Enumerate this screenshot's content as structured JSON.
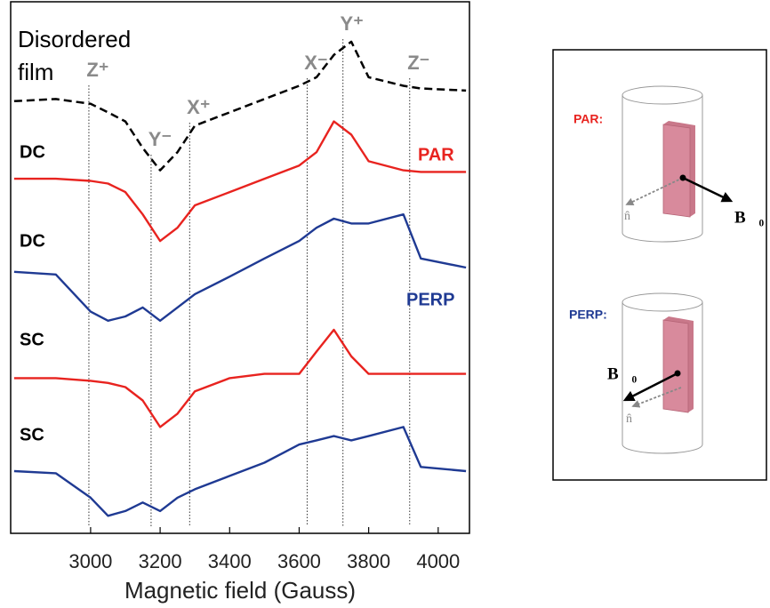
{
  "chart_data": {
    "type": "line",
    "xlabel": "Magnetic field (Gauss)",
    "xlim": [
      2770,
      4090
    ],
    "xticks": [
      3000,
      3200,
      3400,
      3600,
      3800,
      4000
    ],
    "ylim": [
      0,
      100
    ],
    "x": [
      2780,
      2900,
      3000,
      3050,
      3100,
      3150,
      3200,
      3250,
      3300,
      3400,
      3500,
      3600,
      3650,
      3700,
      3750,
      3800,
      3900,
      3950,
      4080
    ],
    "series": [
      {
        "color": "#000000",
        "dashed": true,
        "values": [
          81.3,
          81.7,
          80.8,
          79.2,
          77.5,
          72.5,
          68.3,
          71.7,
          76.7,
          79.2,
          81.7,
          84.2,
          85.8,
          90,
          92.5,
          85.8,
          84.2,
          83.7,
          83.3
        ]
      },
      {
        "color": "#e8231f",
        "dashed": false,
        "values": [
          66.7,
          66.7,
          66.3,
          65.8,
          64.2,
          60,
          55,
          57.5,
          61.7,
          64.2,
          66.7,
          69.2,
          71.7,
          77.5,
          75,
          70,
          68.3,
          68,
          68
        ]
      },
      {
        "color": "#1f3a93",
        "dashed": false,
        "values": [
          49.2,
          48.7,
          41.7,
          40,
          40.8,
          42.5,
          40,
          42.5,
          45,
          48.3,
          51.7,
          55,
          57.5,
          59.2,
          58.3,
          58.3,
          60,
          51.7,
          50
        ]
      },
      {
        "color": "#e8231f",
        "dashed": false,
        "values": [
          29.2,
          29.2,
          28.7,
          28.3,
          27.5,
          25,
          20,
          22.5,
          26.7,
          29.2,
          30,
          30,
          34.2,
          38.3,
          33.3,
          30,
          30,
          30,
          30
        ]
      },
      {
        "color": "#1f3a93",
        "dashed": false,
        "values": [
          11.7,
          11.3,
          6.7,
          3.3,
          4.2,
          5.8,
          4.2,
          6.7,
          8.3,
          10.8,
          13.3,
          16.7,
          17.5,
          18.3,
          17.5,
          18.3,
          20,
          12.5,
          11.7
        ]
      }
    ],
    "markers": [
      {
        "label": "Z⁺",
        "x": 2995
      },
      {
        "label": "Y⁻",
        "x": 3174
      },
      {
        "label": "X⁺",
        "x": 3285
      },
      {
        "label": "X⁻",
        "x": 3623
      },
      {
        "label": "Y⁺",
        "x": 3726
      },
      {
        "label": "Z⁻",
        "x": 3918
      }
    ],
    "annotations": [
      {
        "text": "Disordered",
        "color": "#000000"
      },
      {
        "text": "film",
        "color": "#000000"
      },
      {
        "text": "DC",
        "color": "#000000"
      },
      {
        "text": "PAR",
        "color": "#e8231f"
      },
      {
        "text": "DC",
        "color": "#000000"
      },
      {
        "text": "PERP",
        "color": "#1f3a93"
      },
      {
        "text": "SC",
        "color": "#000000"
      },
      {
        "text": "SC",
        "color": "#000000"
      }
    ]
  },
  "diagram": {
    "panels": [
      {
        "label": "PAR:",
        "field": "B⃗₀",
        "normal": "n̂"
      },
      {
        "label": "PERP:",
        "field": "B⃗₀",
        "normal": "n̂"
      }
    ]
  }
}
